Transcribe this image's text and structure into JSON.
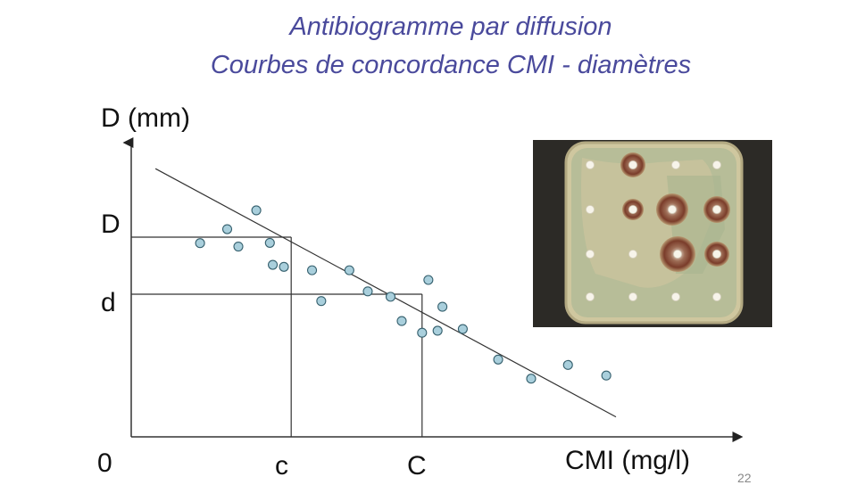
{
  "title_line1": "Antibiogramme par diffusion",
  "title_line2": "Courbes de concordance CMI - diamètres",
  "page_number": "22",
  "colors": {
    "title": "#4a4a9c",
    "dot_fill": "#a9cfdc",
    "dot_stroke": "#36606e"
  },
  "chart_data": {
    "type": "scatter",
    "title": "Courbes de concordance CMI - diamètres",
    "xlabel": "CMI (mg/l)",
    "ylabel": "D (mm)",
    "xlim": [
      0,
      100
    ],
    "ylim": [
      0,
      100
    ],
    "x_ticks": [
      {
        "label": "0",
        "value": 0
      },
      {
        "label": "c",
        "value": 33
      },
      {
        "label": "C",
        "value": 60
      }
    ],
    "y_ticks": [
      {
        "label": "D",
        "value": 70
      },
      {
        "label": "d",
        "value": 50
      }
    ],
    "reference_lines": [
      {
        "name": "D-c",
        "x": 33,
        "y": 70
      },
      {
        "name": "d-C",
        "x": 60,
        "y": 50
      }
    ],
    "regression_line": {
      "x": [
        5,
        100
      ],
      "y": [
        94,
        7
      ]
    },
    "points": [
      {
        "x": 19.8,
        "y": 72.8
      },
      {
        "x": 25.8,
        "y": 79.4
      },
      {
        "x": 22.1,
        "y": 66.7
      },
      {
        "x": 14.2,
        "y": 67.9
      },
      {
        "x": 28.6,
        "y": 68.0
      },
      {
        "x": 31.5,
        "y": 59.6
      },
      {
        "x": 29.2,
        "y": 60.3
      },
      {
        "x": 37.3,
        "y": 58.4
      },
      {
        "x": 45.0,
        "y": 58.4
      },
      {
        "x": 39.2,
        "y": 47.6
      },
      {
        "x": 48.8,
        "y": 51.0
      },
      {
        "x": 53.5,
        "y": 49.1
      },
      {
        "x": 61.3,
        "y": 55.0
      },
      {
        "x": 55.8,
        "y": 40.6
      },
      {
        "x": 60.0,
        "y": 36.5
      },
      {
        "x": 63.2,
        "y": 37.2
      },
      {
        "x": 64.2,
        "y": 45.6
      },
      {
        "x": 68.4,
        "y": 37.8
      },
      {
        "x": 75.7,
        "y": 27.1
      },
      {
        "x": 82.5,
        "y": 20.4
      },
      {
        "x": 90.1,
        "y": 25.2
      },
      {
        "x": 98.0,
        "y": 21.5
      }
    ]
  }
}
